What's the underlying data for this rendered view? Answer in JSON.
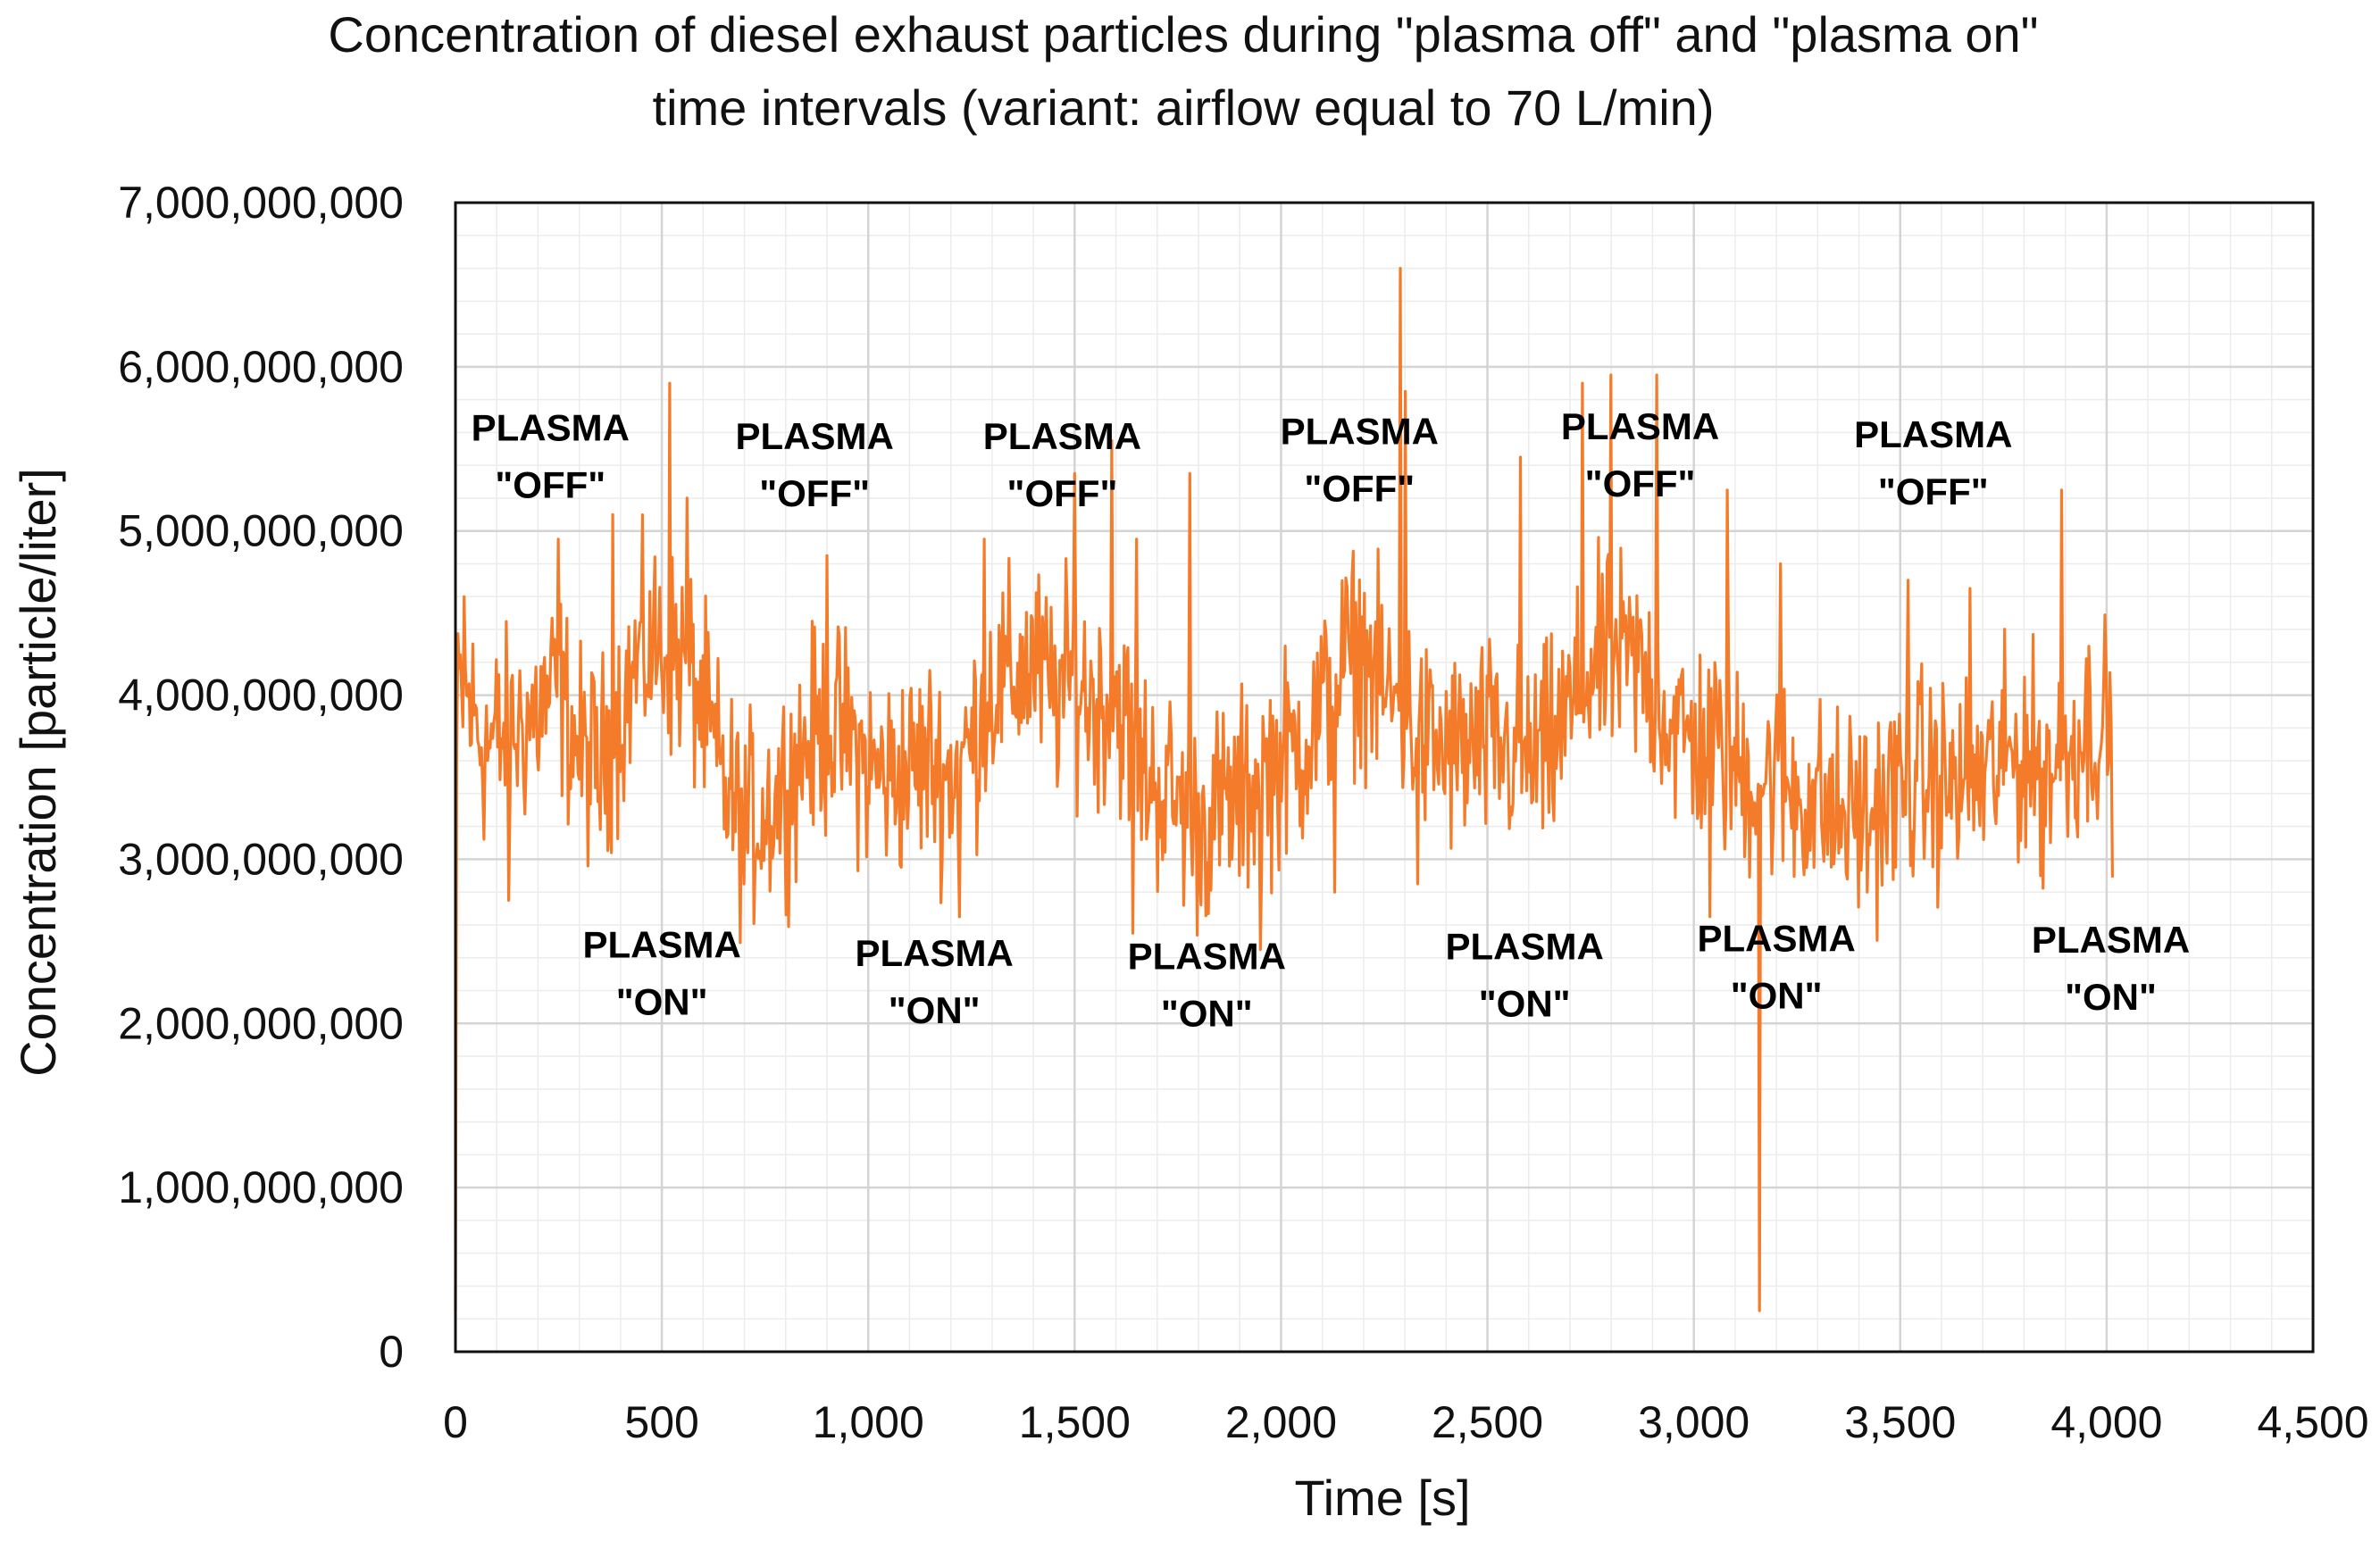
{
  "chart_data": {
    "type": "line",
    "title": "Concentration of diesel exhaust particles during \"plasma off\" and \"plasma on\" time intervals (variant: airflow equal to 70 L/min)",
    "title_lines": [
      "Concentration of diesel exhaust particles during \"plasma off\" and \"plasma on\"",
      "time intervals (variant: airflow equal to 70 L/min)"
    ],
    "xlabel": "Time [s]",
    "ylabel": "Concentration [particle/liter]",
    "xlim": [
      0,
      4500
    ],
    "ylim": [
      0,
      7000000000
    ],
    "x_ticks": [
      0,
      500,
      1000,
      1500,
      2000,
      2500,
      3000,
      3500,
      4000,
      4500
    ],
    "x_tick_labels": [
      "0",
      "500",
      "1,000",
      "1,500",
      "2,000",
      "2,500",
      "3,000",
      "3,500",
      "4,000",
      "4,500"
    ],
    "y_ticks": [
      0,
      1000000000,
      2000000000,
      3000000000,
      4000000000,
      5000000000,
      6000000000,
      7000000000
    ],
    "y_tick_labels": [
      "0",
      "1,000,000,000",
      "2,000,000,000",
      "3,000,000,000",
      "4,000,000,000",
      "5,000,000,000",
      "6,000,000,000",
      "7,000,000,000"
    ],
    "grid": true,
    "minor_grid": true,
    "series": [
      {
        "name": "Concentration",
        "color": "#F47B2A",
        "noise_amplitude": 420000000,
        "x": [
          0,
          3,
          8,
          30,
          70,
          130,
          200,
          250,
          300,
          350,
          400,
          450,
          500,
          520,
          560,
          600,
          650,
          700,
          750,
          800,
          850,
          900,
          950,
          1000,
          1050,
          1100,
          1150,
          1200,
          1250,
          1300,
          1350,
          1400,
          1450,
          1500,
          1550,
          1600,
          1650,
          1700,
          1750,
          1800,
          1850,
          1900,
          1950,
          2000,
          2050,
          2100,
          2150,
          2200,
          2250,
          2300,
          2350,
          2400,
          2450,
          2500,
          2550,
          2600,
          2650,
          2700,
          2750,
          2800,
          2850,
          2900,
          2950,
          3000,
          3050,
          3100,
          3150,
          3200,
          3250,
          3300,
          3350,
          3400,
          3450,
          3500,
          3550,
          3600,
          3650,
          3700,
          3750,
          3800,
          3850,
          3900,
          3950,
          4000,
          4015
        ],
        "y": [
          250000000,
          3600000000,
          4000000000,
          3950000000,
          3700000000,
          3750000000,
          3900000000,
          4050000000,
          3650000000,
          3550000000,
          3900000000,
          4250000000,
          4300000000,
          4250000000,
          4200000000,
          3900000000,
          3450000000,
          3200000000,
          3300000000,
          3450000000,
          3700000000,
          3800000000,
          3750000000,
          3550000000,
          3500000000,
          3550000000,
          3600000000,
          3500000000,
          3700000000,
          4050000000,
          4100000000,
          4200000000,
          4000000000,
          4100000000,
          3950000000,
          4000000000,
          3600000000,
          3450000000,
          3350000000,
          3200000000,
          3300000000,
          3350000000,
          3500000000,
          3600000000,
          3700000000,
          3900000000,
          4200000000,
          4250000000,
          4000000000,
          3900000000,
          3700000000,
          3650000000,
          3650000000,
          3700000000,
          3650000000,
          3600000000,
          3650000000,
          3900000000,
          4150000000,
          4200000000,
          4200000000,
          4050000000,
          3800000000,
          3700000000,
          3700000000,
          3550000000,
          3500000000,
          3500000000,
          3400000000,
          3350000000,
          3250000000,
          3300000000,
          3300000000,
          3450000000,
          3500000000,
          3450000000,
          3450000000,
          3500000000,
          3600000000,
          3650000000,
          3550000000,
          3650000000,
          3800000000,
          3850000000,
          3500000000
        ],
        "spikes": [
          {
            "x": 20,
            "y": 4600000000
          },
          {
            "x": 130,
            "y": 2750000000
          },
          {
            "x": 250,
            "y": 4950000000
          },
          {
            "x": 380,
            "y": 5100000000
          },
          {
            "x": 520,
            "y": 5900000000
          },
          {
            "x": 560,
            "y": 5200000000
          },
          {
            "x": 700,
            "y": 2850000000
          },
          {
            "x": 900,
            "y": 4850000000
          },
          {
            "x": 1220,
            "y": 2650000000
          },
          {
            "x": 1280,
            "y": 4950000000
          },
          {
            "x": 1500,
            "y": 5350000000
          },
          {
            "x": 1590,
            "y": 5550000000
          },
          {
            "x": 1640,
            "y": 2550000000
          },
          {
            "x": 1650,
            "y": 4950000000
          },
          {
            "x": 1780,
            "y": 5350000000
          },
          {
            "x": 1950,
            "y": 2450000000
          },
          {
            "x": 2130,
            "y": 2800000000
          },
          {
            "x": 2290,
            "y": 6600000000
          },
          {
            "x": 2300,
            "y": 5850000000
          },
          {
            "x": 2330,
            "y": 2850000000
          },
          {
            "x": 2580,
            "y": 5450000000
          },
          {
            "x": 2730,
            "y": 5900000000
          },
          {
            "x": 2800,
            "y": 5950000000
          },
          {
            "x": 2910,
            "y": 5950000000
          },
          {
            "x": 3040,
            "y": 2650000000
          },
          {
            "x": 3080,
            "y": 5250000000
          },
          {
            "x": 3160,
            "y": 250000000
          },
          {
            "x": 3210,
            "y": 4800000000
          },
          {
            "x": 3420,
            "y": 2800000000
          },
          {
            "x": 3520,
            "y": 4700000000
          },
          {
            "x": 3670,
            "y": 4650000000
          },
          {
            "x": 3840,
            "y": 2900000000
          },
          {
            "x": 3890,
            "y": 5250000000
          }
        ]
      }
    ],
    "annotations": [
      {
        "lines": [
          "PLASMA",
          "\"OFF\""
        ],
        "x": 230,
        "y": 5550000000
      },
      {
        "lines": [
          "PLASMA",
          "\"ON\""
        ],
        "x": 500,
        "y": 2400000000
      },
      {
        "lines": [
          "PLASMA",
          "\"OFF\""
        ],
        "x": 870,
        "y": 5500000000
      },
      {
        "lines": [
          "PLASMA",
          "\"ON\""
        ],
        "x": 1160,
        "y": 2350000000
      },
      {
        "lines": [
          "PLASMA",
          "\"OFF\""
        ],
        "x": 1470,
        "y": 5500000000
      },
      {
        "lines": [
          "PLASMA",
          "\"ON\""
        ],
        "x": 1820,
        "y": 2330000000
      },
      {
        "lines": [
          "PLASMA",
          "\"OFF\""
        ],
        "x": 2190,
        "y": 5530000000
      },
      {
        "lines": [
          "PLASMA",
          "\"ON\""
        ],
        "x": 2590,
        "y": 2390000000
      },
      {
        "lines": [
          "PLASMA",
          "\"OFF\""
        ],
        "x": 2870,
        "y": 5560000000
      },
      {
        "lines": [
          "PLASMA",
          "\"ON\""
        ],
        "x": 3200,
        "y": 2440000000
      },
      {
        "lines": [
          "PLASMA",
          "\"OFF\""
        ],
        "x": 3580,
        "y": 5510000000
      },
      {
        "lines": [
          "PLASMA",
          "\"ON\""
        ],
        "x": 4010,
        "y": 2430000000
      }
    ]
  }
}
